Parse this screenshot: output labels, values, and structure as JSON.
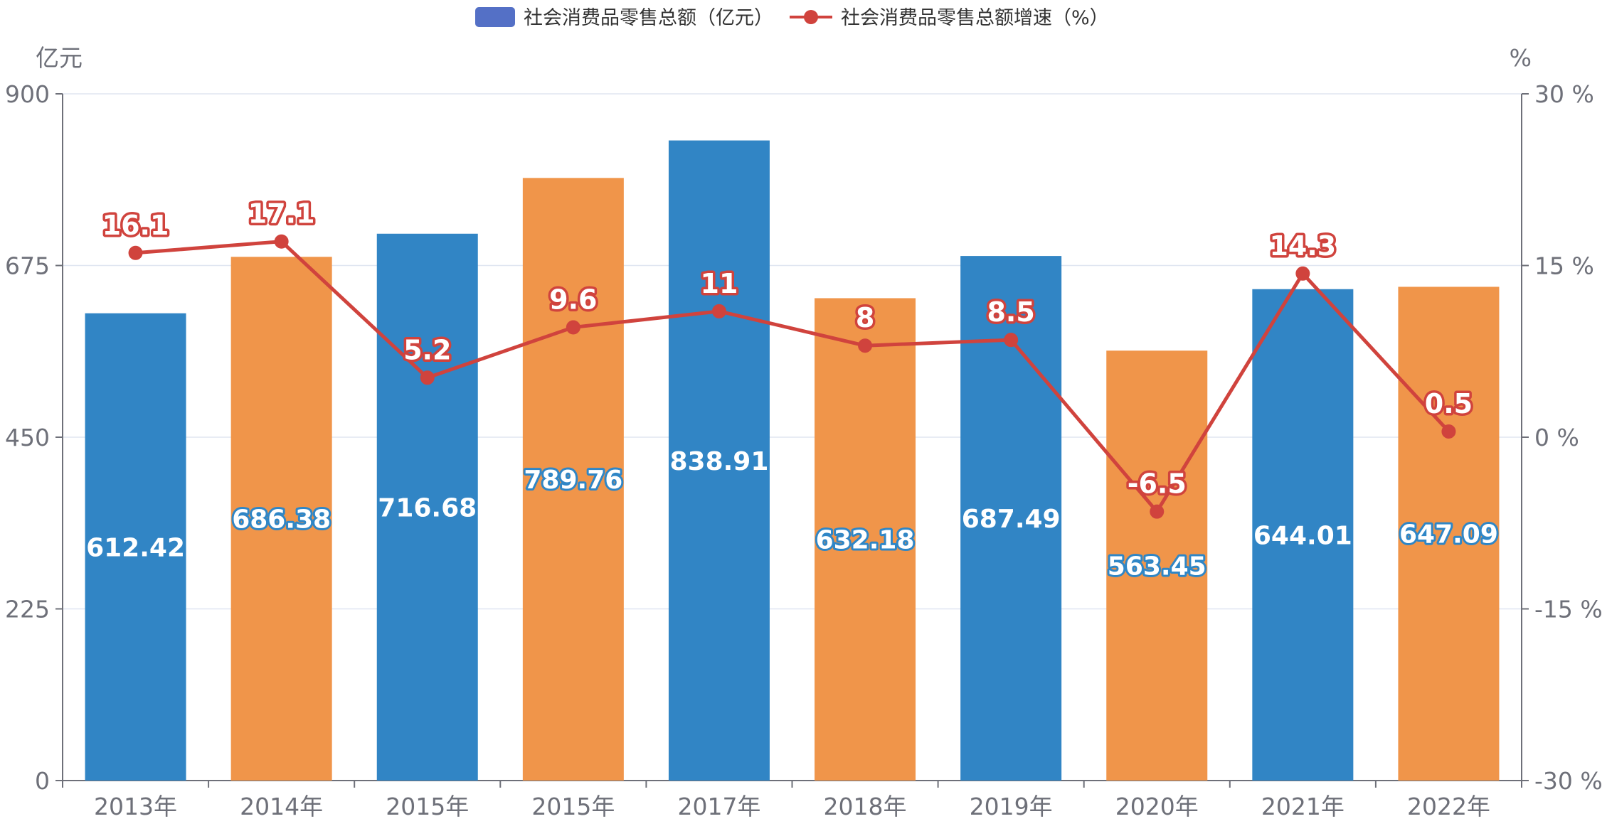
{
  "chart_data": {
    "type": "bar",
    "categories": [
      "2013年",
      "2014年",
      "2015年",
      "2015年",
      "2017年",
      "2018年",
      "2019年",
      "2020年",
      "2021年",
      "2022年"
    ],
    "series": [
      {
        "name": "社会消费品零售总额（亿元）",
        "type": "bar",
        "axis": "left",
        "values": [
          612.42,
          686.38,
          716.68,
          789.76,
          838.91,
          632.18,
          687.49,
          563.45,
          644.01,
          647.09
        ],
        "labels": [
          "612.42",
          "686.38",
          "716.68",
          "789.76",
          "838.91",
          "632.18",
          "687.49",
          "563.45",
          "644.01",
          "647.09"
        ]
      },
      {
        "name": "社会消费品零售总额增速（%）",
        "type": "line",
        "axis": "right",
        "values": [
          16.1,
          17.1,
          5.2,
          9.6,
          11,
          8,
          8.5,
          -6.5,
          14.3,
          0.5
        ],
        "labels": [
          "16.1",
          "17.1",
          "5.2",
          "9.6",
          "11",
          "8",
          "8.5",
          "-6.5",
          "14.3",
          "0.5"
        ]
      }
    ],
    "y_left": {
      "label": "亿元",
      "min": 0,
      "max": 900,
      "ticks": [
        "0",
        "225",
        "450",
        "675",
        "900"
      ]
    },
    "y_right": {
      "label": "%",
      "min": -30,
      "max": 30,
      "ticks": [
        "-30 %",
        "-15 %",
        "0 %",
        "15 %",
        "30 %"
      ]
    },
    "grid": true,
    "legend": "top-center",
    "colors": {
      "bar_blue": "#3185c5",
      "bar_orange": "#f0954a",
      "line": "#d0433d",
      "legend_bar": "#5470c6",
      "grid": "#e0e6f1",
      "axis": "#6e7079"
    }
  }
}
